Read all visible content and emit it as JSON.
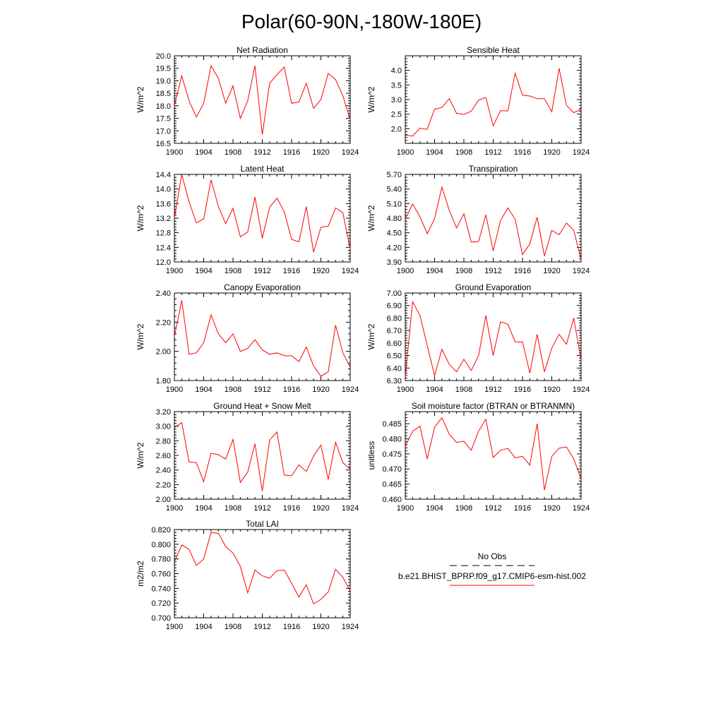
{
  "page_title": "Polar(60-90N,-180W-180E)",
  "colors": {
    "line": "#ff0000",
    "axis": "#000000",
    "background": "#ffffff"
  },
  "legend": {
    "obs_label": "No Obs",
    "model_label": "b.e21.BHIST_BPRP.f09_g17.CMIP6-esm-hist.002"
  },
  "chart_data": [
    {
      "type": "line",
      "title": "Net Radiation",
      "ylabel": "W/m^2",
      "xlim": [
        1900,
        1924
      ],
      "ylim": [
        16.5,
        20.0
      ],
      "xticks": [
        1900,
        1904,
        1908,
        1912,
        1916,
        1920,
        1924
      ],
      "xtick_labels": [
        "1900",
        "1904",
        "1908",
        "1912",
        "1916",
        "1920",
        "1924"
      ],
      "yticks": [
        16.5,
        17.0,
        17.5,
        18.0,
        18.5,
        19.0,
        19.5,
        20.0
      ],
      "ytick_labels": [
        "16.5",
        "17.0",
        "17.5",
        "18.0",
        "18.5",
        "19.0",
        "19.5",
        "20.0"
      ],
      "x": [
        1900,
        1901,
        1902,
        1903,
        1904,
        1905,
        1906,
        1907,
        1908,
        1909,
        1910,
        1911,
        1912,
        1913,
        1914,
        1915,
        1916,
        1917,
        1918,
        1919,
        1920,
        1921,
        1922,
        1923,
        1924
      ],
      "series": [
        {
          "name": "b.e21.BHIST_BPRP.f09_g17.CMIP6-esm-hist.002",
          "values": [
            18.0,
            19.2,
            18.2,
            17.55,
            18.1,
            19.6,
            19.1,
            18.1,
            18.8,
            17.5,
            18.2,
            19.6,
            16.85,
            18.9,
            19.25,
            19.55,
            18.1,
            18.15,
            18.9,
            17.9,
            18.25,
            19.3,
            19.05,
            18.4,
            17.45
          ]
        }
      ]
    },
    {
      "type": "line",
      "title": "Sensible Heat",
      "ylabel": "W/m^2",
      "xlim": [
        1900,
        1924
      ],
      "ylim": [
        1.5,
        4.5
      ],
      "xticks": [
        1900,
        1904,
        1908,
        1912,
        1916,
        1920,
        1924
      ],
      "xtick_labels": [
        "1900",
        "1904",
        "1908",
        "1912",
        "1916",
        "1920",
        "1924"
      ],
      "yticks": [
        2.0,
        2.5,
        3.0,
        3.5,
        4.0
      ],
      "ytick_labels": [
        "2.0",
        "2.5",
        "3.0",
        "3.5",
        "4.0"
      ],
      "x": [
        1900,
        1901,
        1902,
        1903,
        1904,
        1905,
        1906,
        1907,
        1908,
        1909,
        1910,
        1911,
        1912,
        1913,
        1914,
        1915,
        1916,
        1917,
        1918,
        1919,
        1920,
        1921,
        1922,
        1923,
        1924
      ],
      "series": [
        {
          "name": "b.e21.BHIST_BPRP.f09_g17.CMIP6-esm-hist.002",
          "values": [
            1.78,
            1.75,
            2.02,
            1.98,
            2.67,
            2.73,
            3.03,
            2.53,
            2.49,
            2.6,
            2.98,
            3.07,
            2.1,
            2.62,
            2.61,
            3.9,
            3.15,
            3.12,
            3.03,
            3.03,
            2.58,
            4.07,
            2.8,
            2.55,
            2.67
          ]
        }
      ]
    },
    {
      "type": "line",
      "title": "Latent Heat",
      "ylabel": "W/m^2",
      "xlim": [
        1900,
        1924
      ],
      "ylim": [
        12.0,
        14.4
      ],
      "xticks": [
        1900,
        1904,
        1908,
        1912,
        1916,
        1920,
        1924
      ],
      "xtick_labels": [
        "1900",
        "1904",
        "1908",
        "1912",
        "1916",
        "1920",
        "1924"
      ],
      "yticks": [
        12.0,
        12.4,
        12.8,
        13.2,
        13.6,
        14.0,
        14.4
      ],
      "ytick_labels": [
        "12.0",
        "12.4",
        "12.8",
        "13.2",
        "13.6",
        "14.0",
        "14.4"
      ],
      "x": [
        1900,
        1901,
        1902,
        1903,
        1904,
        1905,
        1906,
        1907,
        1908,
        1909,
        1910,
        1911,
        1912,
        1913,
        1914,
        1915,
        1916,
        1917,
        1918,
        1919,
        1920,
        1921,
        1922,
        1923,
        1924
      ],
      "series": [
        {
          "name": "b.e21.BHIST_BPRP.f09_g17.CMIP6-esm-hist.002",
          "values": [
            13.2,
            14.4,
            13.65,
            13.07,
            13.18,
            14.25,
            13.52,
            13.05,
            13.47,
            12.69,
            12.82,
            13.78,
            12.65,
            13.5,
            13.75,
            13.38,
            12.62,
            12.55,
            13.52,
            12.27,
            12.95,
            12.98,
            13.48,
            13.35,
            12.35
          ]
        }
      ]
    },
    {
      "type": "line",
      "title": "Transpiration",
      "ylabel": "W/m^2",
      "xlim": [
        1900,
        1924
      ],
      "ylim": [
        3.9,
        5.7
      ],
      "xticks": [
        1900,
        1904,
        1908,
        1912,
        1916,
        1920,
        1924
      ],
      "xtick_labels": [
        "1900",
        "1904",
        "1908",
        "1912",
        "1916",
        "1920",
        "1924"
      ],
      "yticks": [
        3.9,
        4.2,
        4.5,
        4.8,
        5.1,
        5.4,
        5.7
      ],
      "ytick_labels": [
        "3.90",
        "4.20",
        "4.50",
        "4.80",
        "5.10",
        "5.40",
        "5.70"
      ],
      "x": [
        1900,
        1901,
        1902,
        1903,
        1904,
        1905,
        1906,
        1907,
        1908,
        1909,
        1910,
        1911,
        1912,
        1913,
        1914,
        1915,
        1916,
        1917,
        1918,
        1919,
        1920,
        1921,
        1922,
        1923,
        1924
      ],
      "series": [
        {
          "name": "b.e21.BHIST_BPRP.f09_g17.CMIP6-esm-hist.002",
          "values": [
            4.78,
            5.09,
            4.83,
            4.48,
            4.79,
            5.44,
            4.96,
            4.6,
            4.89,
            4.31,
            4.32,
            4.87,
            4.13,
            4.75,
            5.01,
            4.78,
            4.05,
            4.27,
            4.82,
            4.02,
            4.55,
            4.46,
            4.7,
            4.55,
            3.95
          ]
        }
      ]
    },
    {
      "type": "line",
      "title": "Canopy Evaporation",
      "ylabel": "W/m^2",
      "xlim": [
        1900,
        1924
      ],
      "ylim": [
        1.8,
        2.4
      ],
      "xticks": [
        1900,
        1904,
        1908,
        1912,
        1916,
        1920,
        1924
      ],
      "xtick_labels": [
        "1900",
        "1904",
        "1908",
        "1912",
        "1916",
        "1920",
        "1924"
      ],
      "yticks": [
        1.8,
        2.0,
        2.2,
        2.4
      ],
      "ytick_labels": [
        "1.80",
        "2.00",
        "2.20",
        "2.40"
      ],
      "x": [
        1900,
        1901,
        1902,
        1903,
        1904,
        1905,
        1906,
        1907,
        1908,
        1909,
        1910,
        1911,
        1912,
        1913,
        1914,
        1915,
        1916,
        1917,
        1918,
        1919,
        1920,
        1921,
        1922,
        1923,
        1924
      ],
      "series": [
        {
          "name": "b.e21.BHIST_BPRP.f09_g17.CMIP6-esm-hist.002",
          "values": [
            2.1,
            2.35,
            1.98,
            1.99,
            2.06,
            2.25,
            2.12,
            2.06,
            2.12,
            2.0,
            2.02,
            2.08,
            2.01,
            1.98,
            1.99,
            1.97,
            1.97,
            1.93,
            2.03,
            1.9,
            1.83,
            1.86,
            2.18,
            1.99,
            1.89
          ]
        }
      ]
    },
    {
      "type": "line",
      "title": "Ground Evaporation",
      "ylabel": "W/m^2",
      "xlim": [
        1900,
        1924
      ],
      "ylim": [
        6.3,
        7.0
      ],
      "xticks": [
        1900,
        1904,
        1908,
        1912,
        1916,
        1920,
        1924
      ],
      "xtick_labels": [
        "1900",
        "1904",
        "1908",
        "1912",
        "1916",
        "1920",
        "1924"
      ],
      "yticks": [
        6.3,
        6.4,
        6.5,
        6.6,
        6.7,
        6.8,
        6.9,
        7.0
      ],
      "ytick_labels": [
        "6.30",
        "6.40",
        "6.50",
        "6.60",
        "6.70",
        "6.80",
        "6.90",
        "7.00"
      ],
      "x": [
        1900,
        1901,
        1902,
        1903,
        1904,
        1905,
        1906,
        1907,
        1908,
        1909,
        1910,
        1911,
        1912,
        1913,
        1914,
        1915,
        1916,
        1917,
        1918,
        1919,
        1920,
        1921,
        1922,
        1923,
        1924
      ],
      "series": [
        {
          "name": "b.e21.BHIST_BPRP.f09_g17.CMIP6-esm-hist.002",
          "values": [
            6.33,
            6.93,
            6.82,
            6.58,
            6.34,
            6.55,
            6.43,
            6.37,
            6.47,
            6.38,
            6.5,
            6.82,
            6.5,
            6.77,
            6.75,
            6.61,
            6.61,
            6.36,
            6.67,
            6.37,
            6.56,
            6.67,
            6.59,
            6.8,
            6.46
          ]
        }
      ]
    },
    {
      "type": "line",
      "title": "Ground Heat + Snow Melt",
      "ylabel": "W/m^2",
      "xlim": [
        1900,
        1924
      ],
      "ylim": [
        2.0,
        3.2
      ],
      "xticks": [
        1900,
        1904,
        1908,
        1912,
        1916,
        1920,
        1924
      ],
      "xtick_labels": [
        "1900",
        "1904",
        "1908",
        "1912",
        "1916",
        "1920",
        "1924"
      ],
      "yticks": [
        2.0,
        2.2,
        2.4,
        2.6,
        2.8,
        3.0,
        3.2
      ],
      "ytick_labels": [
        "2.00",
        "2.20",
        "2.40",
        "2.60",
        "2.80",
        "3.00",
        "3.20"
      ],
      "x": [
        1900,
        1901,
        1902,
        1903,
        1904,
        1905,
        1906,
        1907,
        1908,
        1909,
        1910,
        1911,
        1912,
        1913,
        1914,
        1915,
        1916,
        1917,
        1918,
        1919,
        1920,
        1921,
        1922,
        1923,
        1924
      ],
      "series": [
        {
          "name": "b.e21.BHIST_BPRP.f09_g17.CMIP6-esm-hist.002",
          "values": [
            2.98,
            3.05,
            2.51,
            2.5,
            2.24,
            2.63,
            2.61,
            2.55,
            2.82,
            2.23,
            2.37,
            2.76,
            2.11,
            2.81,
            2.92,
            2.33,
            2.32,
            2.47,
            2.38,
            2.59,
            2.74,
            2.27,
            2.78,
            2.5,
            2.41
          ]
        }
      ]
    },
    {
      "type": "line",
      "title": "Soil moisture factor (BTRAN or BTRANMN)",
      "ylabel": "unitless",
      "xlim": [
        1900,
        1924
      ],
      "ylim": [
        0.46,
        0.489
      ],
      "xticks": [
        1900,
        1904,
        1908,
        1912,
        1916,
        1920,
        1924
      ],
      "xtick_labels": [
        "1900",
        "1904",
        "1908",
        "1912",
        "1916",
        "1920",
        "1924"
      ],
      "yticks": [
        0.46,
        0.465,
        0.47,
        0.475,
        0.48,
        0.485
      ],
      "ytick_labels": [
        "0.460",
        "0.465",
        "0.470",
        "0.475",
        "0.480",
        "0.485"
      ],
      "x": [
        1900,
        1901,
        1902,
        1903,
        1904,
        1905,
        1906,
        1907,
        1908,
        1909,
        1910,
        1911,
        1912,
        1913,
        1914,
        1915,
        1916,
        1917,
        1918,
        1919,
        1920,
        1921,
        1922,
        1923,
        1924
      ],
      "series": [
        {
          "name": "b.e21.BHIST_BPRP.f09_g17.CMIP6-esm-hist.002",
          "values": [
            0.4775,
            0.4825,
            0.4842,
            0.4733,
            0.4838,
            0.487,
            0.4815,
            0.4788,
            0.4792,
            0.4762,
            0.4825,
            0.4865,
            0.4738,
            0.4762,
            0.4768,
            0.4737,
            0.4742,
            0.4713,
            0.485,
            0.463,
            0.4742,
            0.4769,
            0.4773,
            0.4733,
            0.4668
          ]
        }
      ]
    },
    {
      "type": "line",
      "title": "Total LAI",
      "ylabel": "m2/m2",
      "xlim": [
        1900,
        1924
      ],
      "ylim": [
        0.7,
        0.82
      ],
      "xticks": [
        1900,
        1904,
        1908,
        1912,
        1916,
        1920,
        1924
      ],
      "xtick_labels": [
        "1900",
        "1904",
        "1908",
        "1912",
        "1916",
        "1920",
        "1924"
      ],
      "yticks": [
        0.7,
        0.72,
        0.74,
        0.76,
        0.78,
        0.8,
        0.82
      ],
      "ytick_labels": [
        "0.700",
        "0.720",
        "0.740",
        "0.760",
        "0.780",
        "0.800",
        "0.820"
      ],
      "x": [
        1900,
        1901,
        1902,
        1903,
        1904,
        1905,
        1906,
        1907,
        1908,
        1909,
        1910,
        1911,
        1912,
        1913,
        1914,
        1915,
        1916,
        1917,
        1918,
        1919,
        1920,
        1921,
        1922,
        1923,
        1924
      ],
      "series": [
        {
          "name": "b.e21.BHIST_BPRP.f09_g17.CMIP6-esm-hist.002",
          "values": [
            0.776,
            0.799,
            0.793,
            0.771,
            0.78,
            0.816,
            0.815,
            0.797,
            0.788,
            0.77,
            0.734,
            0.765,
            0.757,
            0.754,
            0.764,
            0.765,
            0.747,
            0.728,
            0.745,
            0.719,
            0.725,
            0.735,
            0.766,
            0.755,
            0.737
          ]
        }
      ]
    }
  ]
}
